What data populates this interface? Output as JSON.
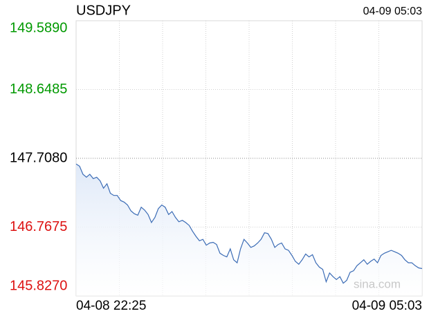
{
  "chart_data": {
    "type": "line",
    "title": "USDJPY",
    "xlim": [
      "04-08 22:25",
      "04-09 05:03"
    ],
    "values": [
      147.63,
      147.6,
      147.49,
      147.45,
      147.49,
      147.43,
      147.45,
      147.4,
      147.3,
      147.36,
      147.23,
      147.2,
      147.2,
      147.13,
      147.11,
      147.07,
      146.99,
      146.95,
      146.93,
      147.04,
      147.0,
      146.94,
      146.83,
      146.9,
      147.02,
      147.07,
      147.04,
      146.94,
      146.98,
      146.9,
      146.84,
      146.86,
      146.83,
      146.79,
      146.71,
      146.64,
      146.58,
      146.6,
      146.52,
      146.55,
      146.56,
      146.53,
      146.41,
      146.38,
      146.36,
      146.47,
      146.32,
      146.28,
      146.47,
      146.6,
      146.55,
      146.49,
      146.51,
      146.55,
      146.6,
      146.69,
      146.68,
      146.6,
      146.49,
      146.53,
      146.55,
      146.47,
      146.45,
      146.38,
      146.3,
      146.26,
      146.32,
      146.4,
      146.36,
      146.39,
      146.28,
      146.22,
      146.19,
      146.02,
      146.14,
      146.09,
      146.05,
      146.09,
      146.0,
      146.04,
      146.15,
      146.17,
      146.24,
      146.28,
      146.32,
      146.26,
      146.3,
      146.33,
      146.28,
      146.38,
      146.41,
      146.43,
      146.45,
      146.43,
      146.41,
      146.38,
      146.32,
      146.28,
      146.28,
      146.24,
      146.21,
      146.2
    ],
    "color": "#3a6bb5",
    "baseline": 147.708,
    "up_color": "#009900",
    "down_color": "#dd1111",
    "flat_color": "#000000",
    "ylim": [
      145.827,
      149.589
    ],
    "yticks": [
      {
        "value": 149.589,
        "label": "149.5890"
      },
      148.6485,
      {
        "value": 147.708,
        "label": "147.7080"
      },
      146.7675,
      {
        "value": 145.827,
        "label": "145.8270"
      }
    ],
    "grid": true,
    "watermark": "sina.com"
  }
}
